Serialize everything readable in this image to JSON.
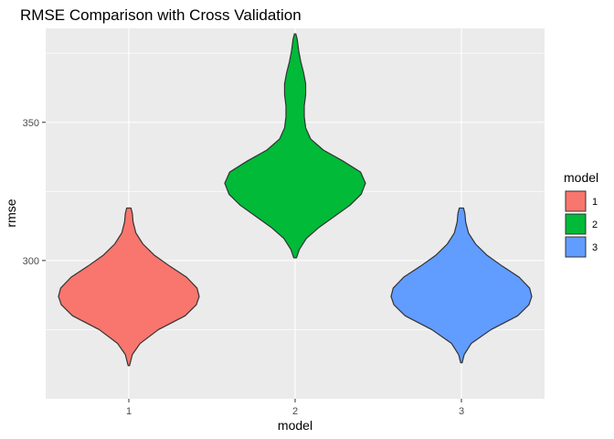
{
  "chart_data": {
    "type": "violin",
    "title": "RMSE Comparison with Cross Validation",
    "xlabel": "model",
    "ylabel": "rmse",
    "categories": [
      "1",
      "2",
      "3"
    ],
    "ylim": [
      250,
      384
    ],
    "yticks": [
      300,
      350
    ],
    "grid": true,
    "legend": {
      "title": "model",
      "position": "right",
      "entries": [
        "1",
        "2",
        "3"
      ]
    },
    "colors": [
      "#F8766D",
      "#00BA38",
      "#619CFF"
    ],
    "series": [
      {
        "category": "1",
        "min": 262,
        "max": 319,
        "density": [
          [
            262,
            0.01
          ],
          [
            266,
            0.05
          ],
          [
            270,
            0.16
          ],
          [
            275,
            0.42
          ],
          [
            280,
            0.8
          ],
          [
            284,
            0.96
          ],
          [
            287,
            1.0
          ],
          [
            290,
            0.97
          ],
          [
            294,
            0.82
          ],
          [
            298,
            0.58
          ],
          [
            302,
            0.36
          ],
          [
            306,
            0.2
          ],
          [
            310,
            0.1
          ],
          [
            314,
            0.06
          ],
          [
            317,
            0.05
          ],
          [
            319,
            0.03
          ]
        ]
      },
      {
        "category": "2",
        "min": 301,
        "max": 382,
        "density": [
          [
            301,
            0.02
          ],
          [
            304,
            0.06
          ],
          [
            308,
            0.16
          ],
          [
            312,
            0.34
          ],
          [
            316,
            0.56
          ],
          [
            320,
            0.78
          ],
          [
            324,
            0.94
          ],
          [
            328,
            1.0
          ],
          [
            332,
            0.93
          ],
          [
            336,
            0.68
          ],
          [
            340,
            0.4
          ],
          [
            344,
            0.22
          ],
          [
            348,
            0.15
          ],
          [
            352,
            0.13
          ],
          [
            356,
            0.13
          ],
          [
            360,
            0.15
          ],
          [
            364,
            0.15
          ],
          [
            368,
            0.12
          ],
          [
            372,
            0.08
          ],
          [
            376,
            0.05
          ],
          [
            380,
            0.03
          ],
          [
            382,
            0.01
          ]
        ]
      },
      {
        "category": "3",
        "min": 263,
        "max": 319,
        "density": [
          [
            263,
            0.01
          ],
          [
            266,
            0.04
          ],
          [
            270,
            0.14
          ],
          [
            275,
            0.42
          ],
          [
            280,
            0.8
          ],
          [
            284,
            0.96
          ],
          [
            287,
            1.0
          ],
          [
            290,
            0.97
          ],
          [
            294,
            0.82
          ],
          [
            298,
            0.58
          ],
          [
            302,
            0.36
          ],
          [
            306,
            0.2
          ],
          [
            310,
            0.1
          ],
          [
            314,
            0.06
          ],
          [
            317,
            0.05
          ],
          [
            319,
            0.03
          ]
        ]
      }
    ]
  }
}
